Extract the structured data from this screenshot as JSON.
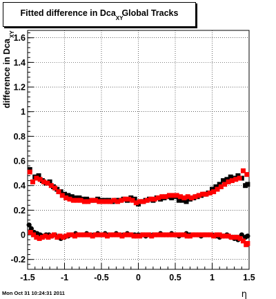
{
  "title": {
    "part1": "Fitted difference in Dca",
    "sub": "XY",
    "part2": "Global Tracks"
  },
  "timestamp": "Mon Oct 31 10:24:31 2011",
  "chart_data": {
    "type": "scatter",
    "xlabel": "η",
    "ylabel": "difference in Dca",
    "ylabel_sub": "XY",
    "xlim": [
      -1.5,
      1.5
    ],
    "ylim": [
      -0.28,
      1.66
    ],
    "xticks": [
      -1.5,
      -1,
      -0.5,
      0,
      0.5,
      1,
      1.5
    ],
    "xtick_labels": [
      "-1.5",
      "-1",
      "-0.5",
      "0",
      "0.5",
      "1",
      "1.5"
    ],
    "yticks": [
      -0.2,
      0,
      0.2,
      0.4,
      0.6,
      0.8,
      1,
      1.2,
      1.4,
      1.6
    ],
    "ytick_labels": [
      "-0.2",
      "0",
      "0.2",
      "0.4",
      "0.6",
      "0.8",
      "1",
      "1.2",
      "1.4",
      "1.6"
    ],
    "grid": true,
    "colors": {
      "black_series": "#000000",
      "red_series": "#ff0000"
    },
    "series": [
      {
        "marker": "square",
        "color": "#000000",
        "x": [
          -1.47,
          -1.4,
          -1.35,
          -1.3,
          -1.25,
          -1.2,
          -1.15,
          -1.1,
          -1.05,
          -1.0,
          -0.95,
          -0.9,
          -0.85,
          -0.8,
          -0.75,
          -0.7,
          -0.65,
          -0.6,
          -0.55,
          -0.5,
          -0.45,
          -0.4,
          -0.35,
          -0.3,
          -0.25,
          -0.2,
          -0.15,
          -0.1,
          -0.05,
          0.0,
          0.05,
          0.1,
          0.15,
          0.2,
          0.25,
          0.3,
          0.35,
          0.4,
          0.45,
          0.5,
          0.55,
          0.6,
          0.65,
          0.7,
          0.75,
          0.8,
          0.85,
          0.9,
          0.95,
          1.0,
          1.05,
          1.1,
          1.15,
          1.2,
          1.25,
          1.3,
          1.35,
          1.4,
          1.45,
          1.48
        ],
        "y": [
          0.53,
          0.47,
          0.48,
          0.44,
          0.42,
          0.43,
          0.39,
          0.37,
          0.35,
          0.33,
          0.32,
          0.31,
          0.3,
          0.3,
          0.29,
          0.29,
          0.28,
          0.28,
          0.29,
          0.28,
          0.28,
          0.28,
          0.27,
          0.28,
          0.28,
          0.29,
          0.28,
          0.3,
          0.29,
          0.25,
          0.27,
          0.28,
          0.29,
          0.28,
          0.3,
          0.29,
          0.3,
          0.31,
          0.3,
          0.31,
          0.28,
          0.28,
          0.27,
          0.29,
          0.3,
          0.31,
          0.32,
          0.33,
          0.34,
          0.37,
          0.39,
          0.41,
          0.44,
          0.45,
          0.47,
          0.46,
          0.48,
          0.46,
          0.4,
          0.41
        ]
      },
      {
        "marker": "square",
        "color": "#ff0000",
        "x": [
          -1.47,
          -1.43,
          -1.38,
          -1.33,
          -1.28,
          -1.23,
          -1.18,
          -1.13,
          -1.08,
          -1.03,
          -0.98,
          -0.93,
          -0.88,
          -0.83,
          -0.78,
          -0.73,
          -0.68,
          -0.63,
          -0.58,
          -0.53,
          -0.48,
          -0.43,
          -0.38,
          -0.33,
          -0.28,
          -0.23,
          -0.18,
          -0.13,
          -0.08,
          -0.03,
          0.02,
          0.07,
          0.12,
          0.17,
          0.22,
          0.27,
          0.32,
          0.37,
          0.42,
          0.47,
          0.52,
          0.57,
          0.62,
          0.67,
          0.72,
          0.77,
          0.82,
          0.87,
          0.92,
          0.97,
          1.02,
          1.07,
          1.12,
          1.17,
          1.22,
          1.27,
          1.32,
          1.37,
          1.42,
          1.47
        ],
        "y": [
          0.51,
          0.43,
          0.46,
          0.45,
          0.43,
          0.42,
          0.4,
          0.38,
          0.35,
          0.32,
          0.3,
          0.29,
          0.28,
          0.28,
          0.28,
          0.27,
          0.27,
          0.28,
          0.28,
          0.27,
          0.27,
          0.27,
          0.27,
          0.28,
          0.27,
          0.28,
          0.29,
          0.29,
          0.28,
          0.26,
          0.27,
          0.27,
          0.28,
          0.29,
          0.29,
          0.3,
          0.31,
          0.31,
          0.32,
          0.32,
          0.32,
          0.31,
          0.3,
          0.31,
          0.3,
          0.31,
          0.32,
          0.33,
          0.33,
          0.34,
          0.35,
          0.37,
          0.39,
          0.41,
          0.43,
          0.44,
          0.45,
          0.46,
          0.52,
          0.49
        ]
      },
      {
        "marker": "circle",
        "color": "#000000",
        "x": [
          -1.48,
          -1.45,
          -1.41,
          -1.37,
          -1.33,
          -1.29,
          -1.25,
          -1.21,
          -1.17,
          -1.13,
          -1.09,
          -1.05,
          -1.0,
          -0.95,
          -0.9,
          -0.85,
          -0.8,
          -0.75,
          -0.7,
          -0.65,
          -0.6,
          -0.55,
          -0.5,
          -0.45,
          -0.4,
          -0.35,
          -0.3,
          -0.25,
          -0.2,
          -0.15,
          -0.1,
          -0.05,
          0.0,
          0.05,
          0.1,
          0.15,
          0.2,
          0.25,
          0.3,
          0.35,
          0.4,
          0.45,
          0.5,
          0.55,
          0.6,
          0.65,
          0.7,
          0.75,
          0.8,
          0.85,
          0.9,
          0.95,
          1.0,
          1.05,
          1.1,
          1.15,
          1.2,
          1.25,
          1.3,
          1.35,
          1.4,
          1.45,
          1.48
        ],
        "y": [
          0.08,
          0.05,
          0.02,
          0.01,
          0.0,
          -0.01,
          0.0,
          0.0,
          -0.01,
          0.0,
          -0.02,
          -0.03,
          -0.02,
          -0.01,
          0.0,
          0.01,
          0.0,
          0.0,
          0.01,
          0.0,
          0.0,
          0.01,
          0.0,
          0.01,
          0.0,
          0.0,
          0.01,
          0.0,
          0.0,
          0.01,
          0.0,
          0.0,
          0.0,
          0.0,
          -0.01,
          0.0,
          0.0,
          0.0,
          0.01,
          0.0,
          0.0,
          0.01,
          0.0,
          -0.01,
          0.0,
          0.01,
          0.0,
          0.0,
          0.0,
          -0.01,
          0.0,
          0.0,
          0.0,
          -0.01,
          -0.02,
          -0.01,
          0.0,
          -0.02,
          -0.03,
          -0.04,
          0.0,
          -0.02,
          -0.01
        ]
      },
      {
        "marker": "square",
        "color": "#ff0000",
        "x": [
          -1.46,
          -1.42,
          -1.38,
          -1.34,
          -1.3,
          -1.26,
          -1.22,
          -1.18,
          -1.14,
          -1.1,
          -1.06,
          -1.02,
          -0.98,
          -0.94,
          -0.9,
          -0.86,
          -0.82,
          -0.78,
          -0.74,
          -0.7,
          -0.66,
          -0.62,
          -0.58,
          -0.54,
          -0.5,
          -0.46,
          -0.42,
          -0.38,
          -0.34,
          -0.3,
          -0.26,
          -0.22,
          -0.18,
          -0.14,
          -0.1,
          -0.06,
          -0.02,
          0.02,
          0.06,
          0.1,
          0.14,
          0.18,
          0.22,
          0.26,
          0.3,
          0.34,
          0.38,
          0.42,
          0.46,
          0.5,
          0.54,
          0.58,
          0.62,
          0.66,
          0.7,
          0.74,
          0.78,
          0.82,
          0.86,
          0.9,
          0.94,
          0.98,
          1.02,
          1.06,
          1.1,
          1.14,
          1.18,
          1.22,
          1.26,
          1.3,
          1.34,
          1.38,
          1.42,
          1.46,
          1.48
        ],
        "y": [
          0.02,
          0.0,
          -0.02,
          -0.03,
          -0.02,
          -0.01,
          -0.02,
          -0.01,
          0.0,
          -0.02,
          -0.01,
          -0.02,
          -0.01,
          0.0,
          0.0,
          -0.01,
          0.0,
          0.0,
          0.0,
          0.0,
          0.0,
          -0.01,
          0.0,
          0.0,
          0.0,
          0.0,
          -0.01,
          0.0,
          0.0,
          0.0,
          0.0,
          -0.01,
          0.0,
          0.0,
          0.0,
          -0.01,
          -0.01,
          -0.01,
          0.0,
          0.0,
          0.0,
          -0.01,
          0.0,
          0.0,
          0.0,
          0.0,
          0.0,
          0.0,
          0.0,
          0.0,
          0.0,
          0.0,
          0.0,
          -0.01,
          -0.01,
          0.0,
          0.0,
          0.0,
          0.0,
          0.0,
          0.0,
          0.0,
          -0.01,
          0.0,
          0.0,
          -0.01,
          -0.01,
          -0.01,
          -0.02,
          -0.02,
          -0.02,
          -0.03,
          -0.05,
          -0.08,
          -0.07
        ]
      }
    ]
  }
}
